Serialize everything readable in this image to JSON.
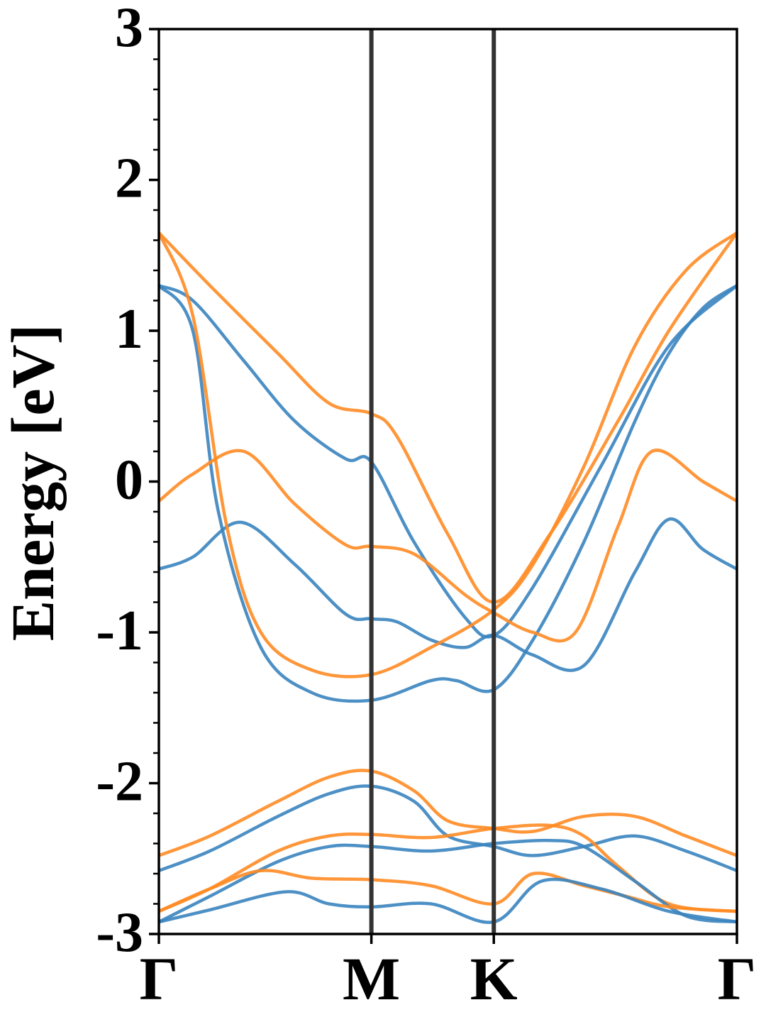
{
  "chart_data": {
    "type": "line",
    "title": "",
    "xlabel": "",
    "ylabel": "Energy [eV]",
    "ylim": [
      -3,
      3
    ],
    "xlim": [
      0,
      3.4
    ],
    "grid": false,
    "legend": "none",
    "yticks": [
      -3,
      -2,
      -1,
      0,
      1,
      2,
      3
    ],
    "ytick_labels": [
      "-3",
      "-2",
      "-1",
      "0",
      "1",
      "2",
      "3"
    ],
    "xticks": [
      {
        "label": "Γ",
        "x": 0
      },
      {
        "label": "M",
        "x": 1.25
      },
      {
        "label": "K",
        "x": 1.97
      },
      {
        "label": "Γ",
        "x": 3.4
      }
    ],
    "vlines": [
      1.25,
      1.97
    ],
    "colors": {
      "blue": "#3a84bf",
      "orange": "#ff8b24",
      "vline": "#333333",
      "axes": "#000000"
    },
    "series": [
      {
        "color": "blue",
        "x": [
          0,
          0.2,
          0.5,
          0.8,
          1.1,
          1.25,
          1.5,
          1.8,
          1.97,
          2.2,
          2.6,
          3.0,
          3.4
        ],
        "y": [
          1.3,
          1.2,
          0.8,
          0.4,
          0.15,
          0.13,
          -0.4,
          -0.9,
          -1.02,
          -0.7,
          0.1,
          0.9,
          1.3
        ]
      },
      {
        "color": "blue",
        "x": [
          0,
          0.2,
          0.35,
          0.6,
          0.9,
          1.25,
          1.6,
          1.75,
          1.97,
          2.2,
          2.5,
          2.8,
          3.0,
          3.2,
          3.4
        ],
        "y": [
          1.3,
          1.0,
          -0.2,
          -1.1,
          -1.4,
          -1.45,
          -1.32,
          -1.32,
          -1.38,
          -1.05,
          -0.4,
          0.4,
          0.85,
          1.15,
          1.3
        ]
      },
      {
        "color": "blue",
        "x": [
          0,
          0.2,
          0.48,
          0.8,
          1.1,
          1.25,
          1.4,
          1.6,
          1.8,
          1.97,
          2.2,
          2.5,
          2.8,
          3.0,
          3.2,
          3.4
        ],
        "y": [
          -0.58,
          -0.5,
          -0.27,
          -0.55,
          -0.88,
          -0.91,
          -0.93,
          -1.05,
          -1.1,
          -1.02,
          -1.15,
          -1.22,
          -0.6,
          -0.25,
          -0.45,
          -0.58
        ]
      },
      {
        "color": "orange",
        "x": [
          0,
          0.3,
          0.7,
          1.0,
          1.25,
          1.4,
          1.7,
          1.97,
          2.3,
          2.7,
          3.0,
          3.4
        ],
        "y": [
          1.65,
          1.3,
          0.85,
          0.52,
          0.45,
          0.3,
          -0.35,
          -0.8,
          -0.35,
          0.4,
          1.0,
          1.65
        ]
      },
      {
        "color": "orange",
        "x": [
          0,
          0.2,
          0.4,
          0.6,
          0.9,
          1.25,
          1.6,
          1.97,
          2.2,
          2.5,
          2.8,
          3.1,
          3.4
        ],
        "y": [
          1.65,
          1.1,
          -0.3,
          -1.0,
          -1.25,
          -1.28,
          -1.1,
          -0.85,
          -0.55,
          0.1,
          0.9,
          1.4,
          1.65
        ]
      },
      {
        "color": "orange",
        "x": [
          0,
          0.2,
          0.5,
          0.8,
          1.1,
          1.25,
          1.5,
          1.8,
          1.97,
          2.2,
          2.45,
          2.7,
          2.9,
          3.2,
          3.4
        ],
        "y": [
          -0.13,
          0.05,
          0.2,
          -0.15,
          -0.42,
          -0.43,
          -0.48,
          -0.75,
          -0.87,
          -1.0,
          -1.0,
          -0.3,
          0.2,
          0.0,
          -0.13
        ]
      },
      {
        "color": "blue",
        "x": [
          0,
          0.3,
          0.7,
          1.0,
          1.25,
          1.5,
          1.7,
          1.97,
          2.2,
          2.5,
          2.8,
          3.1,
          3.4
        ],
        "y": [
          -2.58,
          -2.45,
          -2.22,
          -2.07,
          -2.02,
          -2.12,
          -2.35,
          -2.42,
          -2.48,
          -2.42,
          -2.35,
          -2.45,
          -2.58
        ]
      },
      {
        "color": "orange",
        "x": [
          0,
          0.3,
          0.7,
          1.0,
          1.25,
          1.5,
          1.7,
          1.97,
          2.2,
          2.5,
          2.8,
          3.1,
          3.4
        ],
        "y": [
          -2.48,
          -2.35,
          -2.12,
          -1.96,
          -1.92,
          -2.05,
          -2.25,
          -2.3,
          -2.32,
          -2.22,
          -2.22,
          -2.35,
          -2.48
        ]
      },
      {
        "color": "orange",
        "x": [
          0,
          0.3,
          0.7,
          1.0,
          1.25,
          1.6,
          1.97,
          2.3,
          2.5,
          2.7,
          3.0,
          3.4
        ],
        "y": [
          -2.85,
          -2.7,
          -2.45,
          -2.35,
          -2.34,
          -2.36,
          -2.3,
          -2.28,
          -2.35,
          -2.55,
          -2.8,
          -2.85
        ]
      },
      {
        "color": "blue",
        "x": [
          0,
          0.3,
          0.7,
          1.0,
          1.25,
          1.6,
          1.97,
          2.3,
          2.5,
          2.8,
          3.1,
          3.4
        ],
        "y": [
          -2.92,
          -2.75,
          -2.52,
          -2.42,
          -2.42,
          -2.45,
          -2.4,
          -2.38,
          -2.42,
          -2.65,
          -2.88,
          -2.92
        ]
      },
      {
        "color": "orange",
        "x": [
          0,
          0.3,
          0.6,
          0.9,
          1.25,
          1.6,
          1.97,
          2.2,
          2.5,
          2.75,
          3.0,
          3.4
        ],
        "y": [
          -2.85,
          -2.7,
          -2.58,
          -2.63,
          -2.64,
          -2.68,
          -2.8,
          -2.6,
          -2.68,
          -2.75,
          -2.82,
          -2.85
        ]
      },
      {
        "color": "blue",
        "x": [
          0,
          0.3,
          0.75,
          1.0,
          1.25,
          1.6,
          1.97,
          2.25,
          2.6,
          3.0,
          3.4
        ],
        "y": [
          -2.92,
          -2.84,
          -2.72,
          -2.8,
          -2.82,
          -2.8,
          -2.92,
          -2.65,
          -2.7,
          -2.85,
          -2.92
        ]
      }
    ]
  }
}
